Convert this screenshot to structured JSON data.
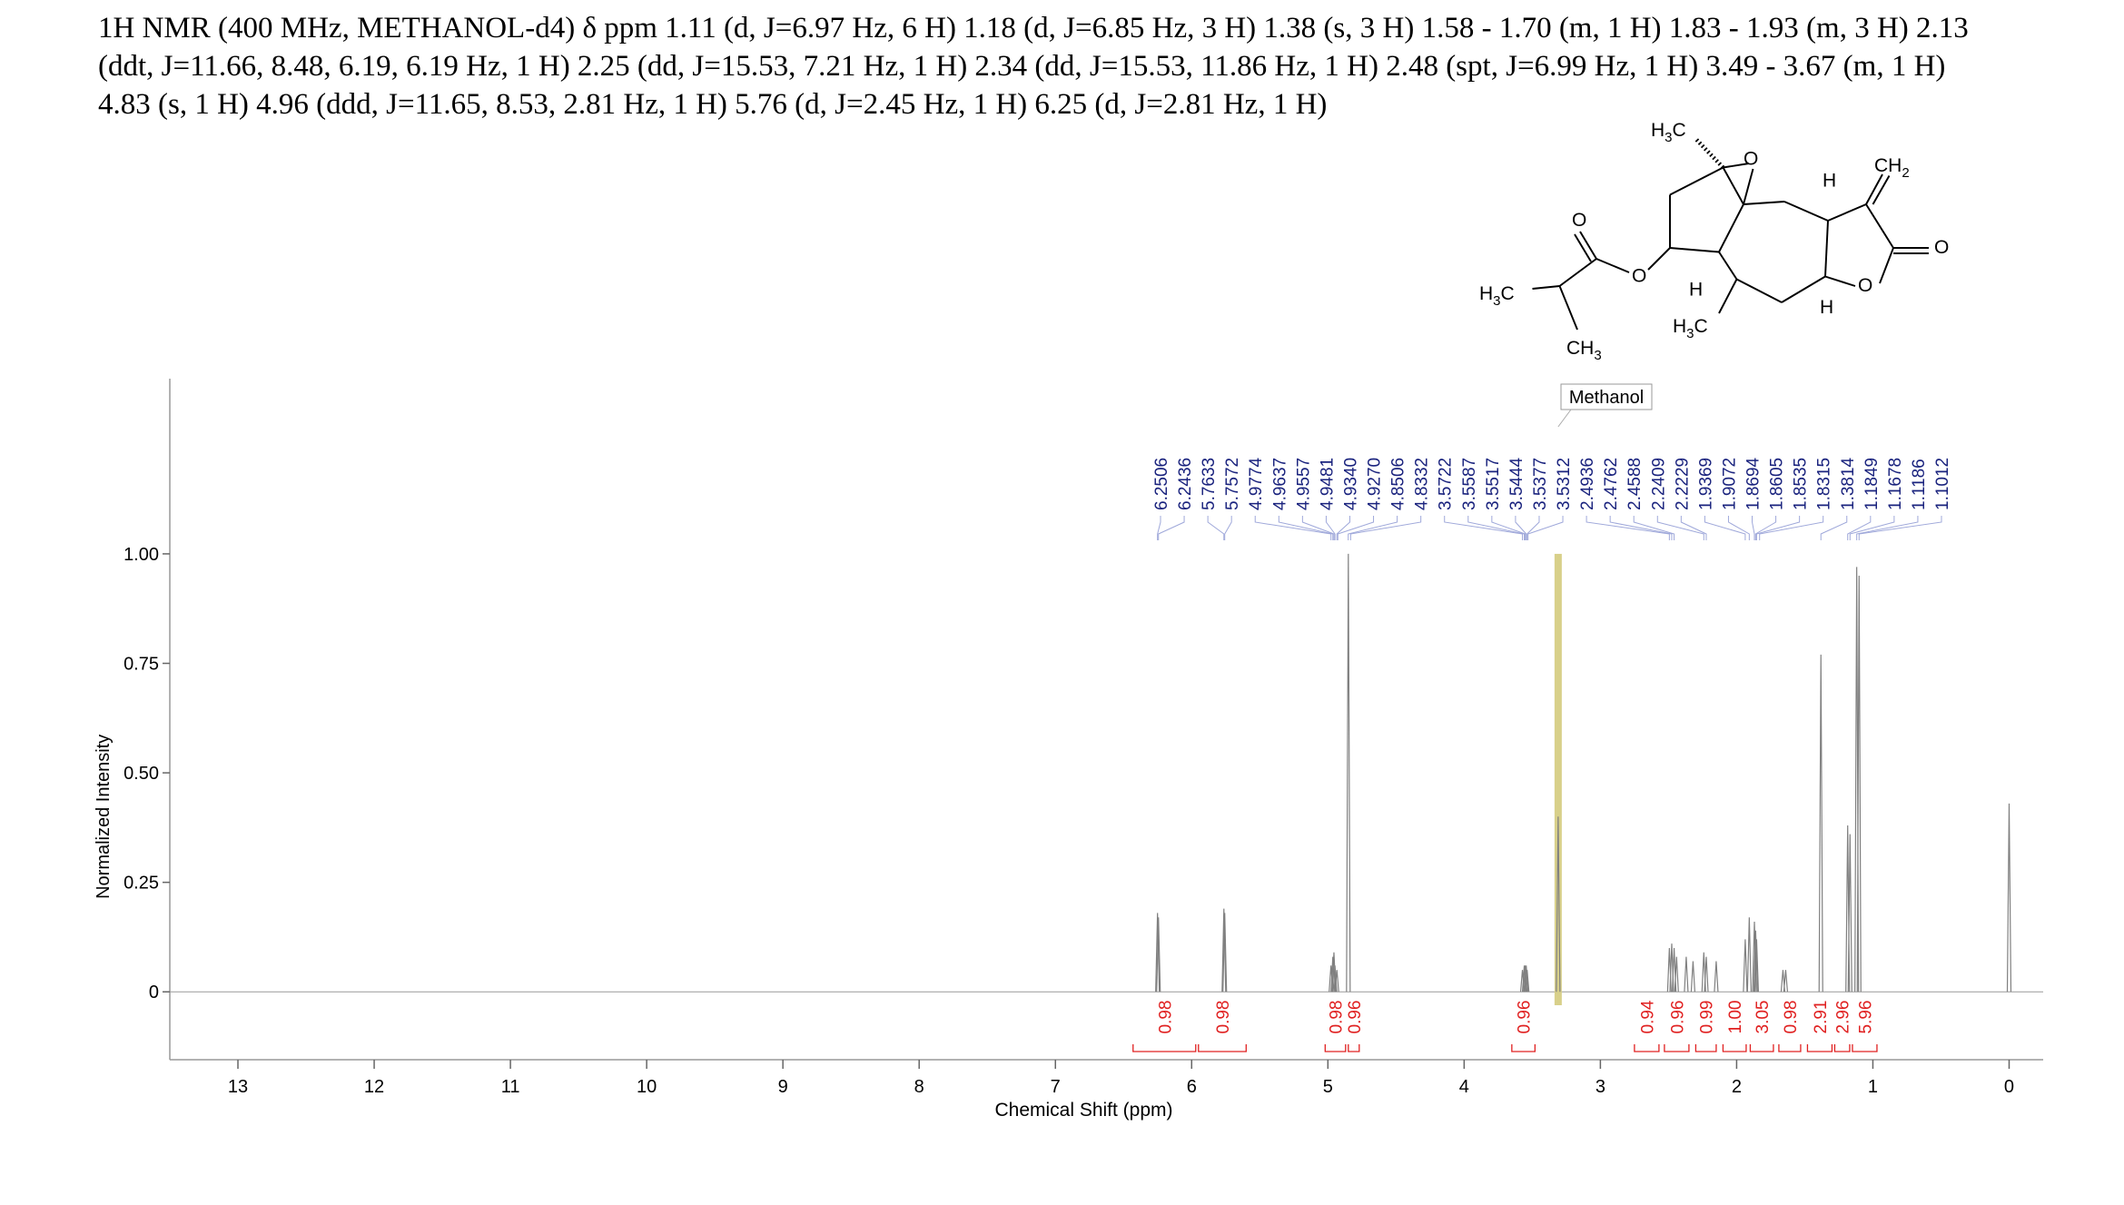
{
  "header": {
    "lines": [
      "1H NMR (400 MHz, METHANOL-d4) δ ppm 1.11 (d, J=6.97 Hz, 6 H) 1.18 (d, J=6.85 Hz, 3 H) 1.38 (s, 3 H) 1.58 - 1.70 (m, 1 H) 1.83 - 1.93 (m, 3 H) 2.13",
      "(ddt, J=11.66, 8.48, 6.19, 6.19 Hz, 1 H) 2.25 (dd, J=15.53, 7.21 Hz, 1 H) 2.34 (dd, J=15.53, 11.86 Hz, 1 H) 2.48 (spt, J=6.99 Hz, 1 H) 3.49 - 3.67 (m, 1 H)",
      "4.83 (s, 1 H) 4.96 (ddd, J=11.65, 8.53, 2.81 Hz, 1 H) 5.76 (d, J=2.45 Hz, 1 H) 6.25 (d, J=2.81 Hz, 1 H)"
    ]
  },
  "molecule": {
    "labels": [
      "H3C",
      "O",
      "H",
      "CH2",
      "O",
      "O",
      "H3C",
      "H",
      "O",
      "O",
      "H3C",
      "H",
      "CH3"
    ]
  },
  "chart_data": {
    "type": "spectrum",
    "x_label": "Chemical Shift (ppm)",
    "y_label": "Normalized Intensity",
    "xlim": [
      13.5,
      -0.25
    ],
    "xticks": [
      13,
      12,
      11,
      10,
      9,
      8,
      7,
      6,
      5,
      4,
      3,
      2,
      1,
      0
    ],
    "ylim": [
      -0.155,
      1.4
    ],
    "yticks": [
      0,
      {
        "value": 0.25,
        "label": "0.25"
      },
      {
        "value": 0.5,
        "label": "0.50"
      },
      {
        "value": 0.75,
        "label": "0.75"
      },
      {
        "value": 1,
        "label": "1.00"
      }
    ],
    "color": "#808080",
    "peaks": {
      "x": [
        6.2506,
        6.2436,
        5.7633,
        5.7572,
        4.9774,
        4.9637,
        4.9557,
        4.9481,
        4.934,
        4.85,
        3.5722,
        3.5587,
        3.5517,
        3.5444,
        3.5377,
        3.31,
        2.4936,
        2.4762,
        2.4588,
        2.4409,
        2.37,
        2.32,
        2.2409,
        2.2229,
        2.15,
        1.9369,
        1.9072,
        1.8694,
        1.8605,
        1.8535,
        1.66,
        1.64,
        1.3814,
        1.1849,
        1.1678,
        1.1186,
        1.1012,
        0
      ],
      "values": [
        0.18,
        0.17,
        0.19,
        0.18,
        0.06,
        0.08,
        0.09,
        0.06,
        0.05,
        1.0,
        0.05,
        0.06,
        0.06,
        0.06,
        0.05,
        0.4,
        0.1,
        0.11,
        0.1,
        0.08,
        0.08,
        0.07,
        0.09,
        0.08,
        0.07,
        0.12,
        0.17,
        0.16,
        0.14,
        0.12,
        0.05,
        0.05,
        0.77,
        0.38,
        0.36,
        0.97,
        0.95,
        0.43
      ]
    },
    "peak_labels": [
      {
        "value": 6.2506,
        "label": "6.2506"
      },
      {
        "value": 6.2436,
        "label": "6.2436"
      },
      {
        "value": 5.7633,
        "label": "5.7633"
      },
      {
        "value": 5.7572,
        "label": "5.7572"
      },
      {
        "value": 4.9774,
        "label": "4.9774"
      },
      {
        "value": 4.9637,
        "label": "4.9637"
      },
      {
        "value": 4.9557,
        "label": "4.9557"
      },
      {
        "value": 4.9481,
        "label": "4.9481"
      },
      {
        "value": 4.934,
        "label": "4.9340"
      },
      {
        "value": 4.927,
        "label": "4.9270"
      },
      {
        "value": 4.8506,
        "label": "4.8506"
      },
      {
        "value": 4.8332,
        "label": "4.8332"
      },
      {
        "value": 3.5722,
        "label": "3.5722"
      },
      {
        "value": 3.5587,
        "label": "3.5587"
      },
      {
        "value": 3.5517,
        "label": "3.5517"
      },
      {
        "value": 3.5444,
        "label": "3.5444"
      },
      {
        "value": 3.5377,
        "label": "3.5377"
      },
      {
        "value": 3.5312,
        "label": "3.5312"
      },
      {
        "value": 2.4936,
        "label": "2.4936"
      },
      {
        "value": 2.4762,
        "label": "2.4762"
      },
      {
        "value": 2.4588,
        "label": "2.4588"
      },
      {
        "value": 2.2409,
        "label": "2.2409"
      },
      {
        "value": 2.2229,
        "label": "2.2229"
      },
      {
        "value": 1.9369,
        "label": "1.9369"
      },
      {
        "value": 1.9072,
        "label": "1.9072"
      },
      {
        "value": 1.8694,
        "label": "1.8694"
      },
      {
        "value": 1.8605,
        "label": "1.8605"
      },
      {
        "value": 1.8535,
        "label": "1.8535"
      },
      {
        "value": 1.8315,
        "label": "1.8315"
      },
      {
        "value": 1.3814,
        "label": "1.3814"
      },
      {
        "value": 1.1849,
        "label": "1.1849"
      },
      {
        "value": 1.1678,
        "label": "1.1678"
      },
      {
        "value": 1.1186,
        "label": "1.1186"
      },
      {
        "value": 1.1012,
        "label": "1.1012"
      }
    ],
    "integrals": {
      "from": [
        6.43,
        5.95,
        5.02,
        4.85,
        3.65,
        2.75,
        2.53,
        2.3,
        2.1,
        1.9,
        1.69,
        1.48,
        1.28,
        1.15
      ],
      "to": [
        5.97,
        5.6,
        4.87,
        4.77,
        3.48,
        2.57,
        2.35,
        2.15,
        1.93,
        1.73,
        1.53,
        1.3,
        1.17,
        0.97
      ],
      "values": [
        0.98,
        0.98,
        0.98,
        0.96,
        0.96,
        0.94,
        0.96,
        0.99,
        1,
        3.05,
        0.98,
        2.91,
        2.96,
        5.96
      ],
      "value_labels": [
        "0.98",
        "0.98",
        "0.98",
        "0.96",
        "0.96",
        "0.94",
        "0.96",
        "0.99",
        "1.00",
        "3.05",
        "0.98",
        "2.91",
        "2.96",
        "5.96"
      ],
      "color": "#e02020"
    },
    "solvent": {
      "label": "Methanol",
      "x": 3.31,
      "color": "#d8d08a"
    }
  }
}
